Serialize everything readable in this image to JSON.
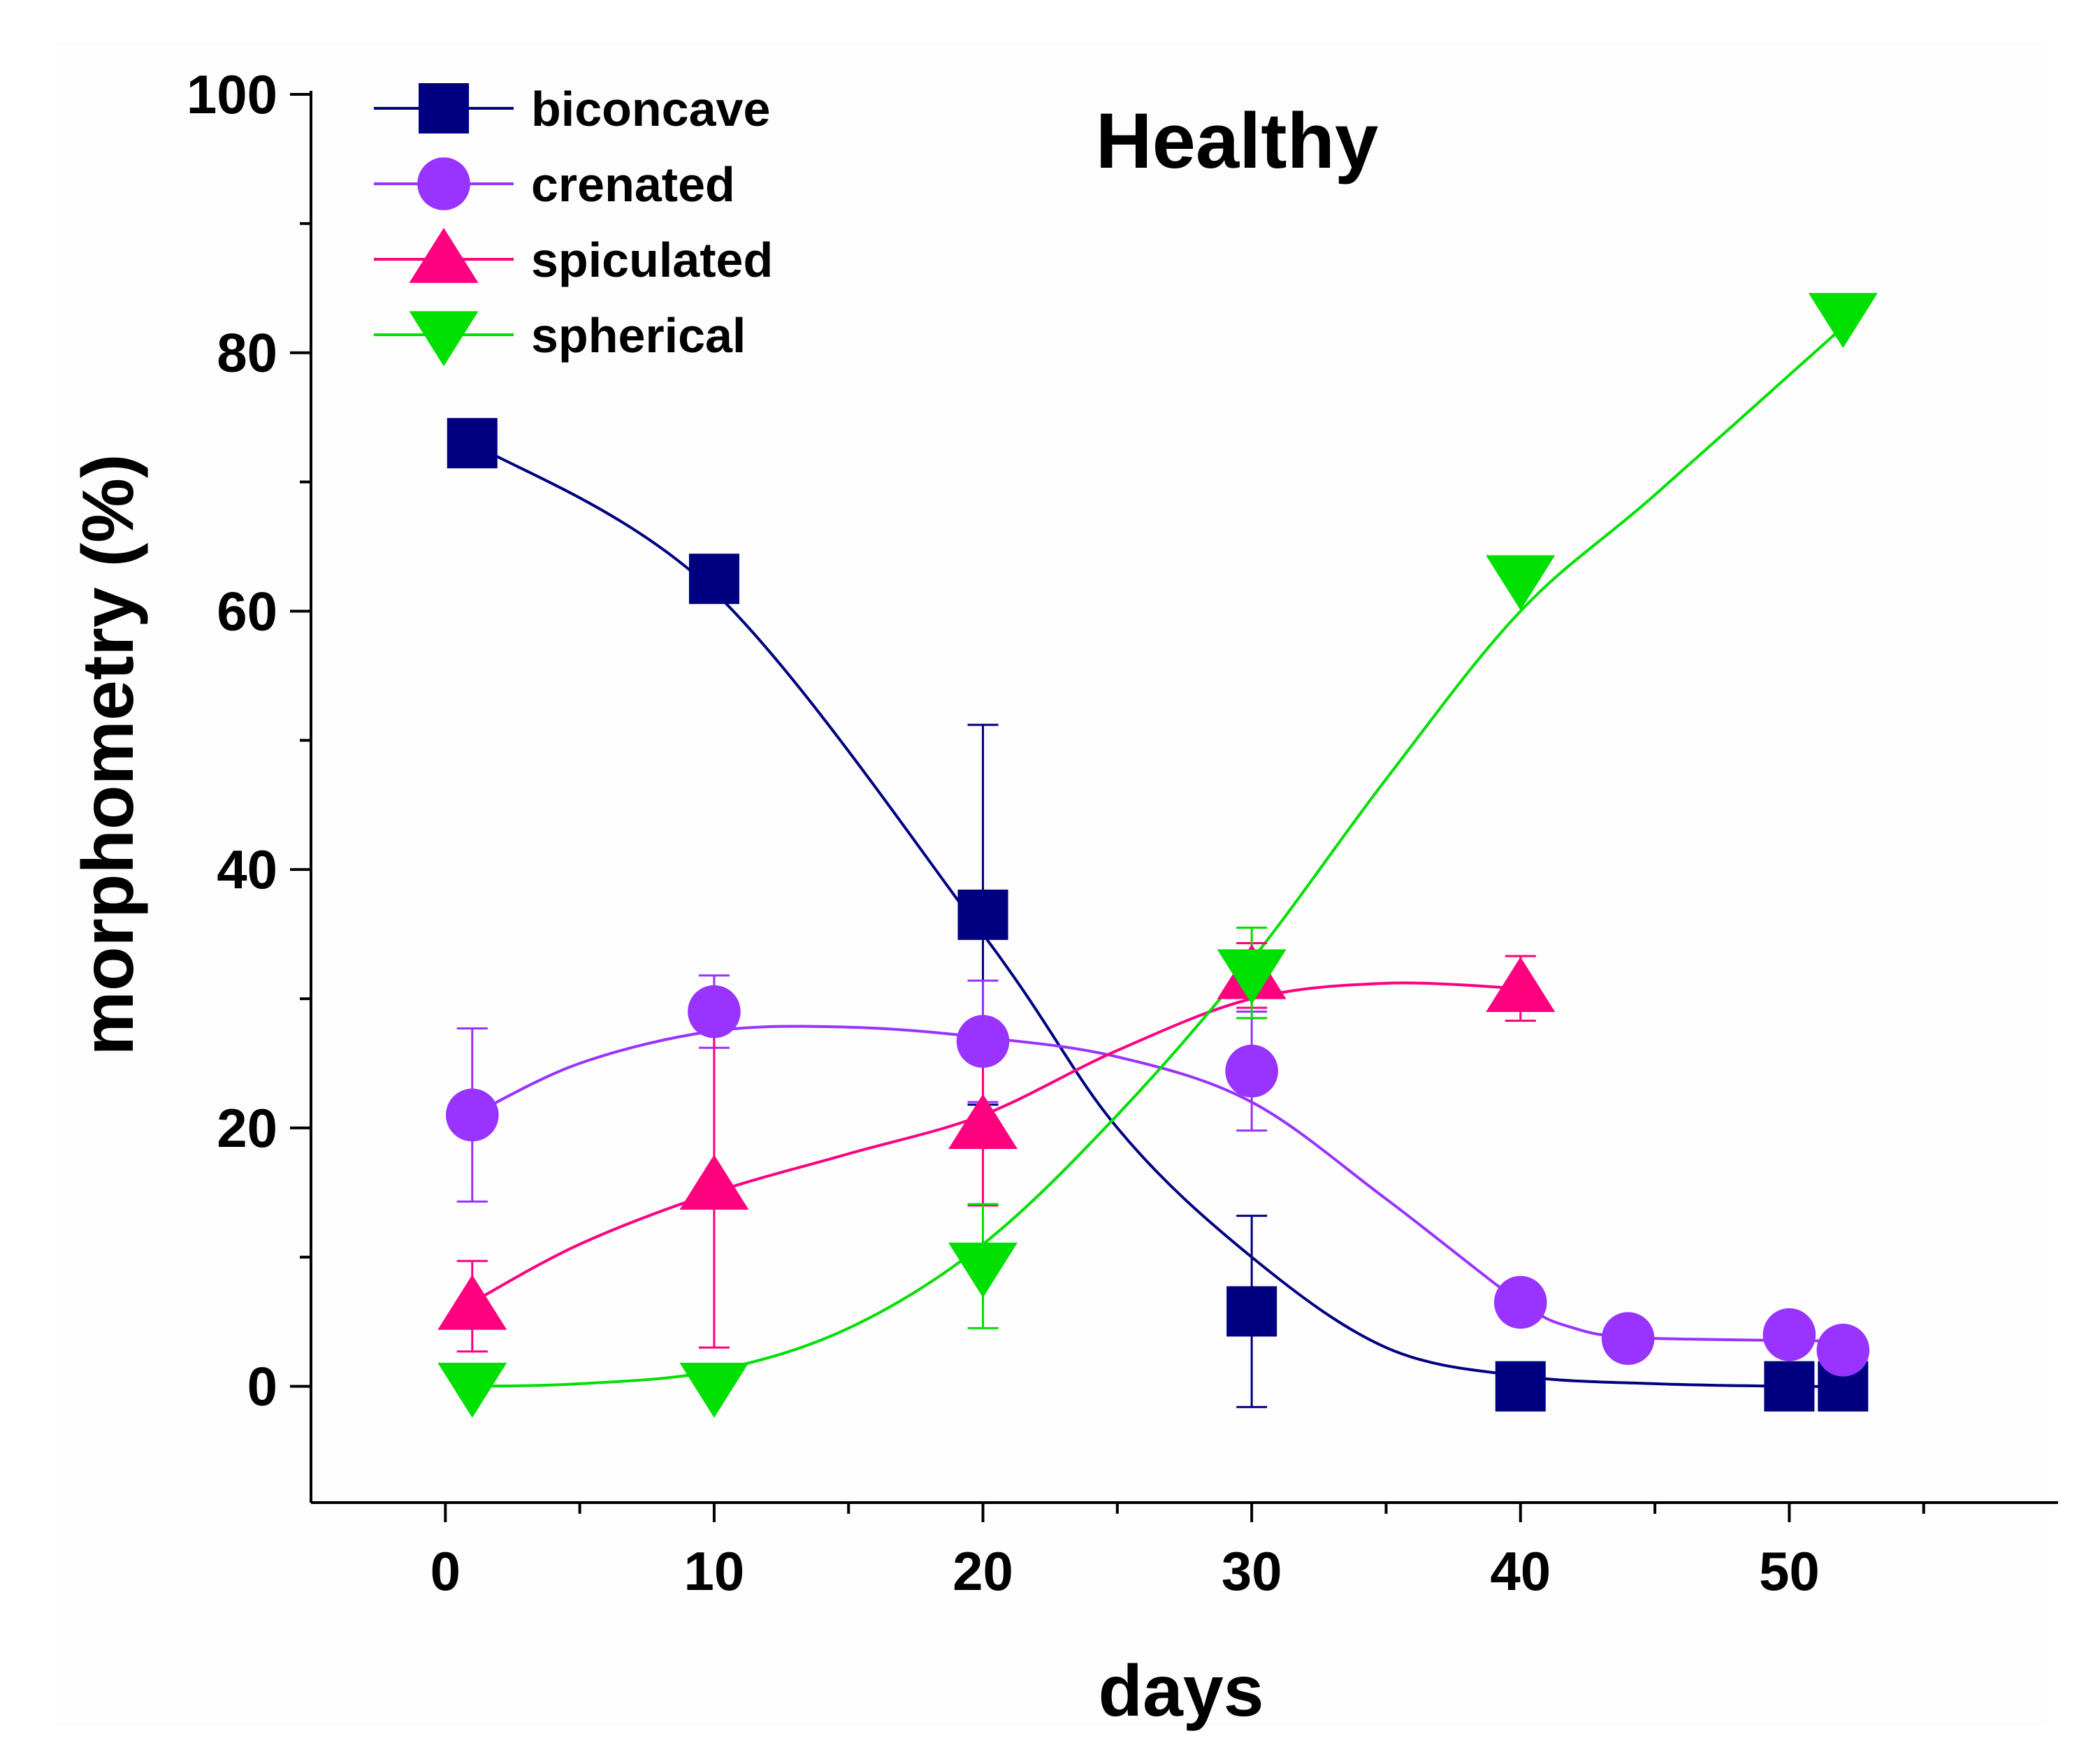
{
  "chart_data": {
    "type": "line",
    "title": "Healthy",
    "xlabel": "days",
    "ylabel": "morphometry (%)",
    "xlim": [
      -5,
      60
    ],
    "ylim": [
      -9,
      100
    ],
    "xticks": [
      0,
      10,
      20,
      30,
      40,
      50
    ],
    "yticks": [
      0,
      20,
      40,
      60,
      80,
      100
    ],
    "legend_position": "top-left",
    "series": [
      {
        "name": "biconcave",
        "color": "#000080",
        "marker": "square",
        "points": [
          {
            "x": 1,
            "y": 73,
            "err": 0
          },
          {
            "x": 10,
            "y": 62.5,
            "err": 0
          },
          {
            "x": 20,
            "y": 36.5,
            "err": 14.7
          },
          {
            "x": 30,
            "y": 5.8,
            "err": 7.4
          },
          {
            "x": 40,
            "y": 0,
            "err": 0
          },
          {
            "x": 50,
            "y": 0,
            "err": 0
          },
          {
            "x": 52,
            "y": 0,
            "err": 0
          }
        ],
        "fit": [
          [
            1,
            73
          ],
          [
            10,
            61.5
          ],
          [
            20,
            35
          ],
          [
            25,
            20
          ],
          [
            30,
            10
          ],
          [
            35,
            3
          ],
          [
            40,
            0.8
          ],
          [
            45,
            0.2
          ],
          [
            50,
            0
          ],
          [
            52,
            0
          ]
        ]
      },
      {
        "name": "crenated",
        "color": "#9933ff",
        "marker": "circle",
        "points": [
          {
            "x": 1,
            "y": 21,
            "err": 6.7
          },
          {
            "x": 10,
            "y": 29,
            "err": 2.8
          },
          {
            "x": 20,
            "y": 26.7,
            "err": 4.7
          },
          {
            "x": 30,
            "y": 24.4,
            "err": 4.6
          },
          {
            "x": 40,
            "y": 6.5,
            "err": 0
          },
          {
            "x": 44,
            "y": 3.7,
            "err": 0
          },
          {
            "x": 50,
            "y": 4,
            "err": 0
          },
          {
            "x": 52,
            "y": 2.8,
            "err": 0
          }
        ],
        "fit": [
          [
            1,
            21
          ],
          [
            5,
            25
          ],
          [
            10,
            27.5
          ],
          [
            15,
            27.8
          ],
          [
            20,
            27
          ],
          [
            25,
            25.5
          ],
          [
            30,
            22
          ],
          [
            35,
            14.5
          ],
          [
            40,
            6.5
          ],
          [
            42,
            4.5
          ],
          [
            44,
            3.8
          ],
          [
            48,
            3.6
          ],
          [
            52,
            3.5
          ]
        ]
      },
      {
        "name": "spiculated",
        "color": "#ff007f",
        "marker": "triangle-up",
        "points": [
          {
            "x": 1,
            "y": 6.2,
            "err": 3.5
          },
          {
            "x": 10,
            "y": 15.5,
            "err": 12.5
          },
          {
            "x": 20,
            "y": 20.2,
            "err": 6.2
          },
          {
            "x": 30,
            "y": 31.8,
            "err": 2.5
          },
          {
            "x": 40,
            "y": 30.8,
            "err": 2.5
          }
        ],
        "fit": [
          [
            1,
            6.5
          ],
          [
            5,
            11
          ],
          [
            10,
            15
          ],
          [
            15,
            18
          ],
          [
            20,
            21
          ],
          [
            25,
            26
          ],
          [
            30,
            30
          ],
          [
            35,
            31.2
          ],
          [
            40,
            30.8
          ]
        ]
      },
      {
        "name": "spherical",
        "color": "#00e000",
        "marker": "triangle-down",
        "points": [
          {
            "x": 1,
            "y": 0,
            "err": 0
          },
          {
            "x": 10,
            "y": 0,
            "err": 0
          },
          {
            "x": 20,
            "y": 9.3,
            "err": 4.8
          },
          {
            "x": 30,
            "y": 32,
            "err": 3.5
          },
          {
            "x": 40,
            "y": 62.5,
            "err": 0
          },
          {
            "x": 52,
            "y": 82.8,
            "err": 0
          }
        ],
        "fit": [
          [
            1,
            0
          ],
          [
            5,
            0.2
          ],
          [
            10,
            1.2
          ],
          [
            15,
            4.5
          ],
          [
            20,
            11
          ],
          [
            25,
            21
          ],
          [
            30,
            33
          ],
          [
            35,
            47
          ],
          [
            40,
            60
          ],
          [
            45,
            69
          ],
          [
            52,
            82
          ]
        ]
      }
    ]
  }
}
